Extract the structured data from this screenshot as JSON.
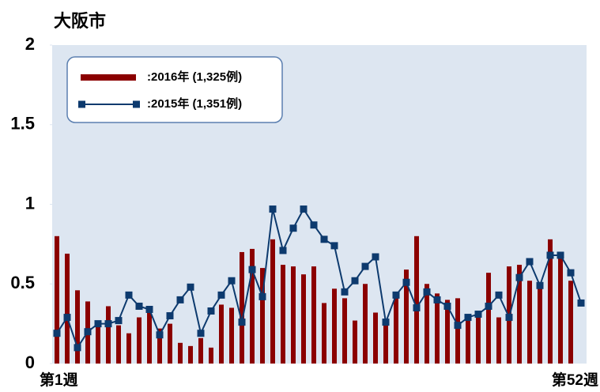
{
  "chart_data": {
    "type": "bar_line",
    "title": "大阪市",
    "categories": [
      "第1週",
      null,
      null,
      null,
      null,
      null,
      null,
      null,
      null,
      null,
      null,
      null,
      null,
      null,
      null,
      null,
      null,
      null,
      null,
      null,
      null,
      null,
      null,
      null,
      null,
      null,
      null,
      null,
      null,
      null,
      null,
      null,
      null,
      null,
      null,
      null,
      null,
      null,
      null,
      null,
      null,
      null,
      null,
      null,
      null,
      null,
      null,
      null,
      null,
      null,
      null,
      "第52週"
    ],
    "series": [
      {
        "name": ":2016年 (1,325例)",
        "kind": "bar",
        "color": "#8b0000",
        "values": [
          0.8,
          0.69,
          0.46,
          0.39,
          0.27,
          0.36,
          0.24,
          0.19,
          0.29,
          0.33,
          0.22,
          0.25,
          0.13,
          0.11,
          0.16,
          0.1,
          0.37,
          0.35,
          0.7,
          0.72,
          0.6,
          0.78,
          0.62,
          0.61,
          0.56,
          0.61,
          0.38,
          0.47,
          0.41,
          0.27,
          0.5,
          0.32,
          0.24,
          0.41,
          0.59,
          0.8,
          0.5,
          0.44,
          0.4,
          0.41,
          0.31,
          0.32,
          0.57,
          0.29,
          0.61,
          0.62,
          0.52,
          0.51,
          0.78,
          0.66,
          0.52,
          null
        ]
      },
      {
        "name": ":2015年 (1,351例)",
        "kind": "line",
        "color": "#0d3a6e",
        "values": [
          0.19,
          0.29,
          0.1,
          0.2,
          0.25,
          0.25,
          0.27,
          0.43,
          0.36,
          0.34,
          0.18,
          0.3,
          0.4,
          0.48,
          0.19,
          0.33,
          0.43,
          0.52,
          0.26,
          0.59,
          0.42,
          0.97,
          0.71,
          0.85,
          0.97,
          0.87,
          0.78,
          0.74,
          0.45,
          0.52,
          0.61,
          0.67,
          0.26,
          0.43,
          0.51,
          0.35,
          0.45,
          0.4,
          0.36,
          0.24,
          0.29,
          0.31,
          0.36,
          0.43,
          0.29,
          0.54,
          0.64,
          0.49,
          0.68,
          0.68,
          0.57,
          0.38
        ]
      }
    ],
    "ylim": [
      0,
      2
    ],
    "yticks": [
      0,
      0.5,
      1,
      1.5,
      2
    ]
  }
}
